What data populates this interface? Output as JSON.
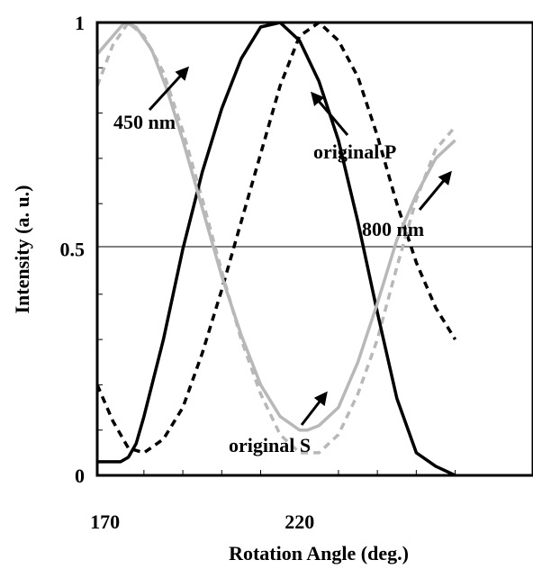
{
  "chart_data": {
    "type": "line",
    "xlabel": "Rotation Angle (deg.)",
    "ylabel": "Intensity (a. u.)",
    "xlim": [
      168,
      280
    ],
    "ylim": [
      0,
      1
    ],
    "x_ticks": [
      {
        "value": 170,
        "label": "170"
      },
      {
        "value": 220,
        "label": "220"
      }
    ],
    "y_ticks": [
      {
        "value": 0,
        "label": "0"
      },
      {
        "value": 0.5,
        "label": "0.5"
      },
      {
        "value": 1,
        "label": "1"
      }
    ],
    "grid": "horizontal line at 0.5",
    "series": [
      {
        "name": "original P",
        "color": "#000000",
        "dashed": true,
        "x": [
          168,
          172,
          176,
          180,
          185,
          190,
          195,
          200,
          205,
          210,
          215,
          220,
          225,
          230,
          235,
          240,
          245,
          250,
          255,
          260
        ],
        "y": [
          0.2,
          0.12,
          0.06,
          0.05,
          0.08,
          0.15,
          0.27,
          0.41,
          0.56,
          0.71,
          0.86,
          0.97,
          1.0,
          0.96,
          0.88,
          0.75,
          0.6,
          0.47,
          0.37,
          0.3
        ]
      },
      {
        "name": "original S",
        "color": "#b8b8b8",
        "dashed": true,
        "x": [
          168,
          172,
          176,
          180,
          185,
          190,
          195,
          200,
          205,
          210,
          215,
          220,
          225,
          230,
          235,
          240,
          245,
          250,
          255,
          260
        ],
        "y": [
          0.86,
          0.95,
          1.0,
          0.97,
          0.89,
          0.76,
          0.61,
          0.45,
          0.3,
          0.18,
          0.09,
          0.05,
          0.05,
          0.09,
          0.18,
          0.3,
          0.46,
          0.61,
          0.72,
          0.77
        ]
      },
      {
        "name": "800 nm",
        "color": "#000000",
        "dashed": false,
        "x": [
          168,
          170,
          172,
          174,
          176,
          178,
          180,
          185,
          190,
          195,
          200,
          205,
          210,
          215,
          220,
          225,
          230,
          235,
          240,
          245,
          250,
          255,
          260
        ],
        "y": [
          0.03,
          0.03,
          0.03,
          0.03,
          0.04,
          0.07,
          0.13,
          0.3,
          0.5,
          0.67,
          0.81,
          0.92,
          0.99,
          1.0,
          0.96,
          0.87,
          0.74,
          0.56,
          0.36,
          0.17,
          0.05,
          0.02,
          0.0
        ]
      },
      {
        "name": "450 nm",
        "color": "#b8b8b8",
        "dashed": false,
        "x": [
          168,
          172,
          175,
          178,
          182,
          186,
          190,
          195,
          200,
          205,
          210,
          215,
          220,
          222,
          225,
          230,
          235,
          240,
          245,
          250,
          255,
          260
        ],
        "y": [
          0.93,
          0.97,
          1.0,
          0.99,
          0.94,
          0.85,
          0.74,
          0.59,
          0.44,
          0.31,
          0.2,
          0.13,
          0.1,
          0.1,
          0.11,
          0.15,
          0.25,
          0.38,
          0.52,
          0.62,
          0.7,
          0.74
        ]
      }
    ],
    "annotations": [
      {
        "text": "450 nm",
        "color": "#000000"
      },
      {
        "text": "original P",
        "color": "#000000"
      },
      {
        "text": "800 nm",
        "color": "#000000"
      },
      {
        "text": "original S",
        "color": "#000000"
      }
    ]
  }
}
